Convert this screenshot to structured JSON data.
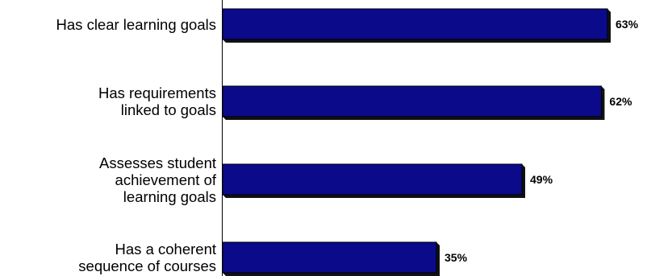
{
  "chart_data": {
    "type": "bar",
    "orientation": "horizontal",
    "categories": [
      [
        "Has clear learning goals"
      ],
      [
        "Has requirements",
        "linked to goals"
      ],
      [
        "Assesses student",
        "achievement of",
        "learning goals"
      ],
      [
        "Has a coherent",
        "sequence of courses"
      ]
    ],
    "values": [
      63,
      62,
      49,
      35
    ],
    "value_labels": [
      "63%",
      "62%",
      "49%",
      "35%"
    ],
    "xlim": [
      0,
      63
    ],
    "bar_color": "#0a0a8a",
    "bar_shadow_color": "#111111",
    "grid": false,
    "legend": "none"
  }
}
